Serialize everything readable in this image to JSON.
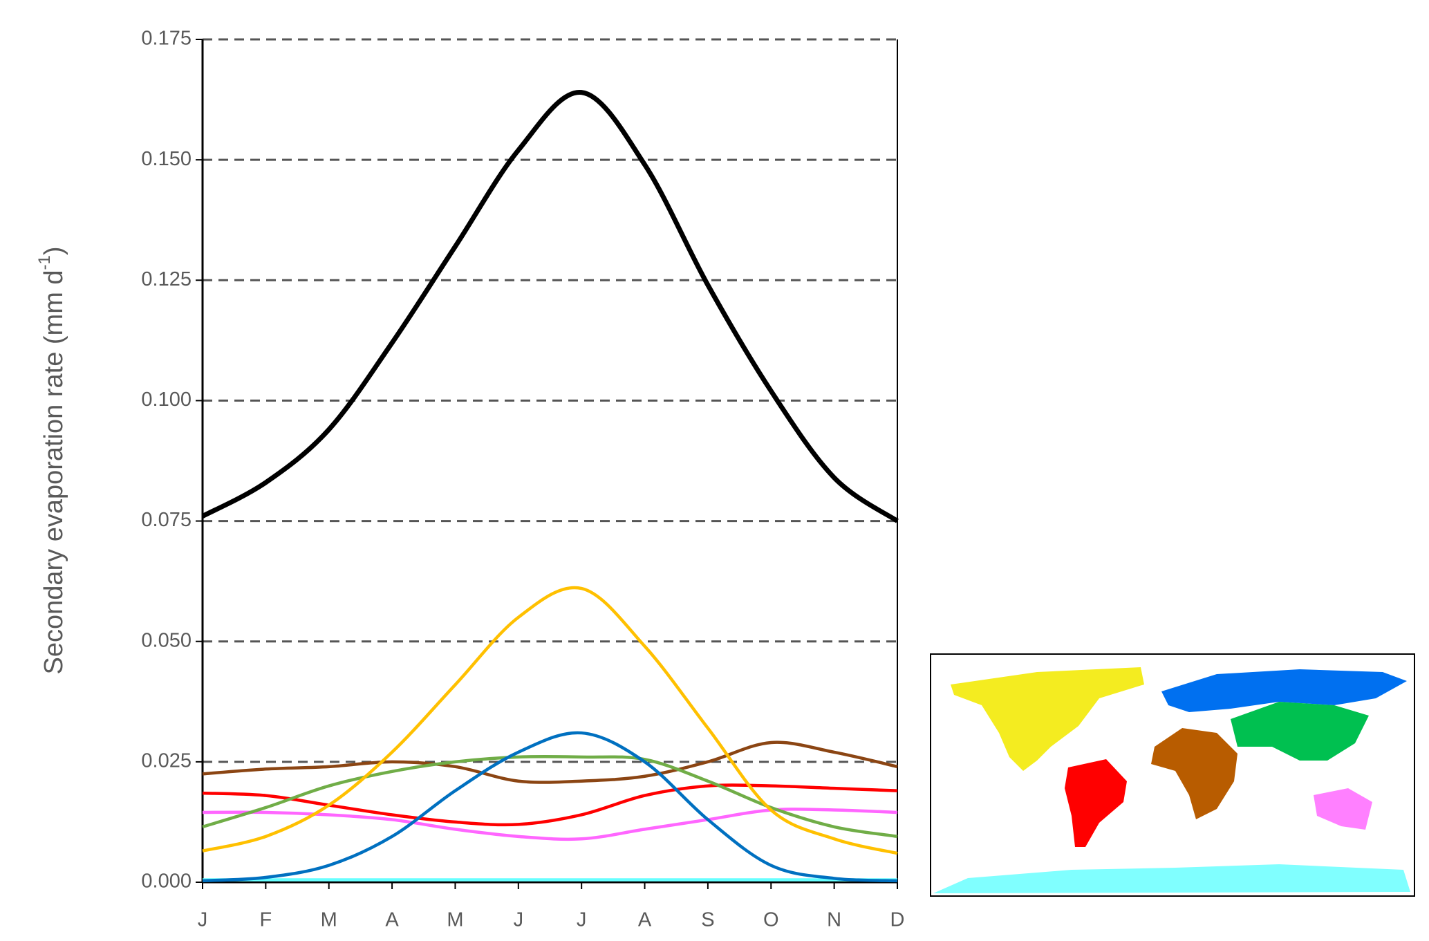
{
  "chart_data": {
    "type": "line",
    "y_label": [
      "Secondary evaporation rate (mm d",
      "-1",
      ")"
    ],
    "categories": [
      "J",
      "F",
      "M",
      "A",
      "M",
      "J",
      "J",
      "A",
      "S",
      "O",
      "N",
      "D"
    ],
    "ylim": [
      0,
      0.175
    ],
    "yticks": [
      {
        "value": 0,
        "label": "0.000"
      },
      0.025,
      {
        "value": 0.05,
        "label": "0.050"
      },
      0.075,
      {
        "value": 0.1,
        "label": "0.100"
      },
      0.125,
      {
        "value": 0.15,
        "label": "0.150"
      },
      0.175
    ],
    "grid": true,
    "series": [
      {
        "color": "#000000",
        "values": [
          0.076,
          0.083,
          0.094,
          0.112,
          0.132,
          0.152,
          0.164,
          0.149,
          0.124,
          0.102,
          0.084,
          0.075
        ]
      },
      {
        "color": "#ffc000",
        "values": [
          0.0065,
          0.0095,
          0.016,
          0.027,
          0.041,
          0.055,
          0.061,
          0.049,
          0.032,
          0.015,
          0.009,
          0.006
        ]
      },
      {
        "color": "#0070c0",
        "values": [
          0.0003,
          0.001,
          0.0035,
          0.0095,
          0.019,
          0.027,
          0.031,
          0.025,
          0.013,
          0.0035,
          0.0008,
          0.0003
        ]
      },
      {
        "color": "#70ad47",
        "values": [
          0.0115,
          0.0155,
          0.02,
          0.023,
          0.025,
          0.026,
          0.026,
          0.0255,
          0.021,
          0.0155,
          0.0115,
          0.0095
        ]
      },
      {
        "color": "#8b4513",
        "values": [
          0.0225,
          0.0235,
          0.024,
          0.025,
          0.024,
          0.021,
          0.021,
          0.022,
          0.025,
          0.029,
          0.027,
          0.024
        ]
      },
      {
        "color": "#ff0000",
        "values": [
          0.0185,
          0.018,
          0.016,
          0.014,
          0.0125,
          0.012,
          0.014,
          0.018,
          0.02,
          0.02,
          0.0195,
          0.019
        ]
      },
      {
        "color": "#ff66ff",
        "values": [
          0.0145,
          0.0145,
          0.014,
          0.013,
          0.011,
          0.0095,
          0.009,
          0.011,
          0.013,
          0.015,
          0.015,
          0.0145
        ]
      },
      {
        "color": "#66ffff",
        "values": [
          0.0005,
          0.0005,
          0.0005,
          0.0005,
          0.0005,
          0.0005,
          0.0005,
          0.0005,
          0.0005,
          0.0005,
          0.0005,
          0.0005
        ]
      }
    ]
  }
}
